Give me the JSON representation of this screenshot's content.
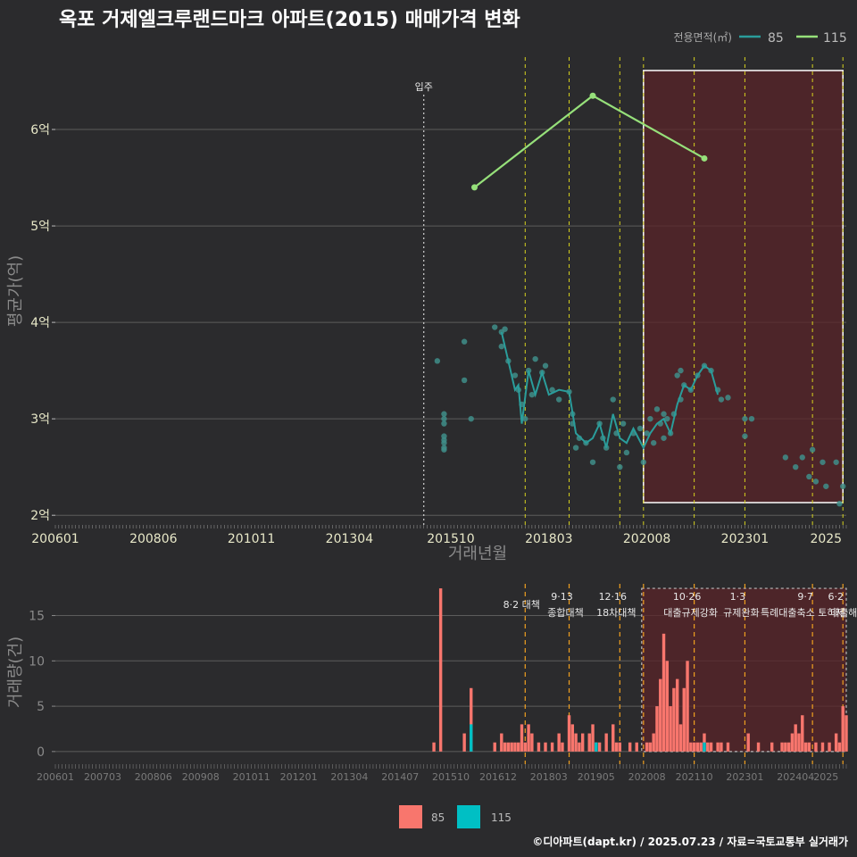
{
  "title": "옥포 거제엘크루랜드마크 아파트(2015) 매매가격 변화",
  "footer": "©디아파트(dapt.kr) / 2025.07.23 / 자료=국토교통부 실거래가",
  "colors": {
    "s85_line": "#2a9d9b",
    "s85_point": "#3f8e8a",
    "s115": "#96e07a",
    "bar85": "#f8766d",
    "bar115": "#00bfc4",
    "highlight": "#5a2428",
    "vline": "#d7d21e"
  },
  "chart_data": [
    {
      "type": "line",
      "title": "옥포 거제엘크루랜드마크 아파트(2015) 매매가격 변화",
      "xlabel": "거래년월",
      "ylabel": "평균가(억)",
      "xlim": [
        "2006-01",
        "2025-07"
      ],
      "ylim": [
        1.9,
        6.75
      ],
      "x_ticks": [
        "200601",
        "200806",
        "201011",
        "201304",
        "201510",
        "201803",
        "202008",
        "202301",
        "2025"
      ],
      "y_ticks": [
        "2억",
        "3억",
        "4억",
        "5억",
        "6억"
      ],
      "legend": {
        "title": "전용면적(㎡)",
        "position": "top-right",
        "entries": [
          "85",
          "115"
        ]
      },
      "annotation": {
        "label": "입주",
        "x": "2015-02"
      },
      "highlight_range": [
        "2020-07",
        "2025-06"
      ],
      "event_dates": [
        "2017-08",
        "2018-09",
        "2019-12",
        "2020-07",
        "2021-10",
        "2023-01",
        "2024-09",
        "2025-06"
      ],
      "series": [
        {
          "name": "85",
          "kind": "points",
          "x": [
            "2015-06",
            "2015-08",
            "2015-08",
            "2015-08",
            "2015-08",
            "2015-08",
            "2015-08",
            "2015-08",
            "2015-08",
            "2016-02",
            "2016-02",
            "2016-04",
            "2016-11",
            "2017-01",
            "2017-01",
            "2017-02",
            "2017-03",
            "2017-05",
            "2017-06",
            "2017-07",
            "2017-08",
            "2017-09",
            "2017-10",
            "2017-11",
            "2018-01",
            "2018-02",
            "2018-04",
            "2018-06",
            "2018-09",
            "2018-10",
            "2018-10",
            "2018-11",
            "2018-12",
            "2019-02",
            "2019-04",
            "2019-06",
            "2019-07",
            "2019-08",
            "2019-10",
            "2019-11",
            "2019-12",
            "2020-01",
            "2020-02",
            "2020-04",
            "2020-06",
            "2020-07",
            "2020-08",
            "2020-09",
            "2020-10",
            "2020-11",
            "2020-12",
            "2021-01",
            "2021-01",
            "2021-02",
            "2021-03",
            "2021-04",
            "2021-05",
            "2021-06",
            "2021-06",
            "2021-07",
            "2021-09",
            "2021-11",
            "2022-01",
            "2022-03",
            "2022-05",
            "2022-06",
            "2022-08",
            "2023-01",
            "2023-01",
            "2023-03",
            "2024-01",
            "2024-04",
            "2024-06",
            "2024-08",
            "2024-09",
            "2024-10",
            "2024-12",
            "2025-01",
            "2025-04",
            "2025-05",
            "2025-06"
          ],
          "y": [
            3.6,
            3.05,
            3.0,
            2.95,
            2.82,
            2.78,
            2.75,
            2.7,
            2.68,
            3.8,
            3.4,
            3.0,
            3.95,
            3.9,
            3.75,
            3.93,
            3.6,
            3.45,
            3.3,
            3.15,
            3.0,
            3.5,
            3.25,
            3.62,
            3.48,
            3.55,
            3.3,
            3.2,
            3.28,
            3.05,
            2.95,
            2.7,
            2.8,
            2.75,
            2.55,
            2.95,
            2.8,
            2.7,
            3.2,
            2.85,
            2.5,
            2.95,
            2.65,
            2.85,
            2.9,
            2.55,
            2.85,
            3.0,
            2.75,
            3.1,
            2.95,
            3.05,
            2.8,
            3.0,
            2.85,
            3.05,
            3.45,
            3.2,
            3.5,
            3.35,
            3.3,
            3.45,
            3.55,
            3.5,
            3.3,
            3.2,
            3.22,
            3.0,
            2.82,
            3.0,
            2.6,
            2.5,
            2.6,
            2.4,
            2.68,
            2.35,
            2.55,
            2.3,
            2.55,
            2.12,
            2.3
          ]
        },
        {
          "name": "85",
          "kind": "line",
          "x": [
            "2017-01",
            "2017-03",
            "2017-05",
            "2017-06",
            "2017-07",
            "2017-09",
            "2017-11",
            "2018-01",
            "2018-03",
            "2018-06",
            "2018-09",
            "2018-11",
            "2019-02",
            "2019-04",
            "2019-06",
            "2019-08",
            "2019-10",
            "2019-12",
            "2020-02",
            "2020-04",
            "2020-07",
            "2020-09",
            "2020-11",
            "2021-01",
            "2021-03",
            "2021-05",
            "2021-07",
            "2021-09",
            "2021-11",
            "2022-01",
            "2022-03",
            "2022-05"
          ],
          "y": [
            3.9,
            3.6,
            3.3,
            3.35,
            2.95,
            3.5,
            3.25,
            3.48,
            3.25,
            3.3,
            3.28,
            2.85,
            2.75,
            2.8,
            2.95,
            2.7,
            3.05,
            2.8,
            2.75,
            2.9,
            2.7,
            2.85,
            2.95,
            3.0,
            2.85,
            3.15,
            3.35,
            3.3,
            3.45,
            3.55,
            3.5,
            3.25
          ]
        },
        {
          "name": "115",
          "kind": "line",
          "x": [
            "2016-05",
            "2019-04",
            "2022-01"
          ],
          "y": [
            5.4,
            6.35,
            5.7
          ]
        }
      ]
    },
    {
      "type": "bar",
      "ylabel": "거래량(건)",
      "ylim": [
        -1,
        18.5
      ],
      "y_ticks": [
        "0",
        "5",
        "10",
        "15"
      ],
      "x_ticks": [
        "200601",
        "200703",
        "200806",
        "200908",
        "201011",
        "201201",
        "201304",
        "201407",
        "201510",
        "201612",
        "201803",
        "201905",
        "202008",
        "202110",
        "202301",
        "202404",
        "2025"
      ],
      "legend": {
        "position": "bottom",
        "entries": [
          "85",
          "115"
        ]
      },
      "events": [
        {
          "date": "2017-08",
          "line1": "",
          "line2": "8·2 대책"
        },
        {
          "date": "2018-09",
          "line1": "9·13",
          "line2": "종합대책"
        },
        {
          "date": "2019-12",
          "line1": "12·16",
          "line2": "18차대책"
        },
        {
          "date": "2021-10",
          "line1": "10·26",
          "line2": "대출규제강화"
        },
        {
          "date": "2023-01",
          "line1": "1·3",
          "line2": "규제완화"
        },
        {
          "date": "2024-09",
          "line1": "9·7",
          "line2": "특례대출축소 토허제 해"
        },
        {
          "date": "2025-06",
          "line1": "6·2",
          "line2": "대출"
        }
      ],
      "series": [
        {
          "name": "85",
          "x": [
            "2015-05",
            "2015-07",
            "2016-02",
            "2016-04",
            "2016-11",
            "2017-01",
            "2017-02",
            "2017-03",
            "2017-04",
            "2017-05",
            "2017-06",
            "2017-07",
            "2017-08",
            "2017-09",
            "2017-10",
            "2017-12",
            "2018-02",
            "2018-04",
            "2018-06",
            "2018-07",
            "2018-09",
            "2018-10",
            "2018-11",
            "2018-12",
            "2019-01",
            "2019-03",
            "2019-04",
            "2019-05",
            "2019-06",
            "2019-08",
            "2019-10",
            "2019-11",
            "2019-12",
            "2020-03",
            "2020-05",
            "2020-08",
            "2020-09",
            "2020-10",
            "2020-11",
            "2020-12",
            "2021-01",
            "2021-02",
            "2021-03",
            "2021-04",
            "2021-05",
            "2021-06",
            "2021-07",
            "2021-08",
            "2021-09",
            "2021-10",
            "2021-11",
            "2021-12",
            "2022-01",
            "2022-02",
            "2022-03",
            "2022-05",
            "2022-06",
            "2022-08",
            "2023-02",
            "2023-05",
            "2023-09",
            "2023-12",
            "2024-01",
            "2024-02",
            "2024-03",
            "2024-04",
            "2024-05",
            "2024-06",
            "2024-07",
            "2024-08",
            "2024-10",
            "2024-12",
            "2025-02",
            "2025-04",
            "2025-05",
            "2025-06",
            "2025-07"
          ],
          "values": [
            1,
            18,
            2,
            7,
            1,
            2,
            1,
            1,
            1,
            1,
            1,
            3,
            1,
            3,
            2,
            1,
            1,
            1,
            2,
            1,
            4,
            3,
            2,
            1,
            2,
            2,
            3,
            1,
            1,
            2,
            3,
            1,
            1,
            1,
            1,
            1,
            1,
            2,
            5,
            8,
            13,
            10,
            5,
            7,
            8,
            3,
            7,
            10,
            1,
            1,
            1,
            1,
            2,
            1,
            1,
            1,
            1,
            1,
            2,
            1,
            1,
            1,
            1,
            1,
            2,
            3,
            2,
            4,
            1,
            1,
            1,
            1,
            1,
            2,
            1,
            5,
            4
          ]
        },
        {
          "name": "115",
          "x": [
            "2016-04",
            "2019-05",
            "2022-01"
          ],
          "values": [
            3,
            1,
            1
          ]
        }
      ]
    }
  ]
}
